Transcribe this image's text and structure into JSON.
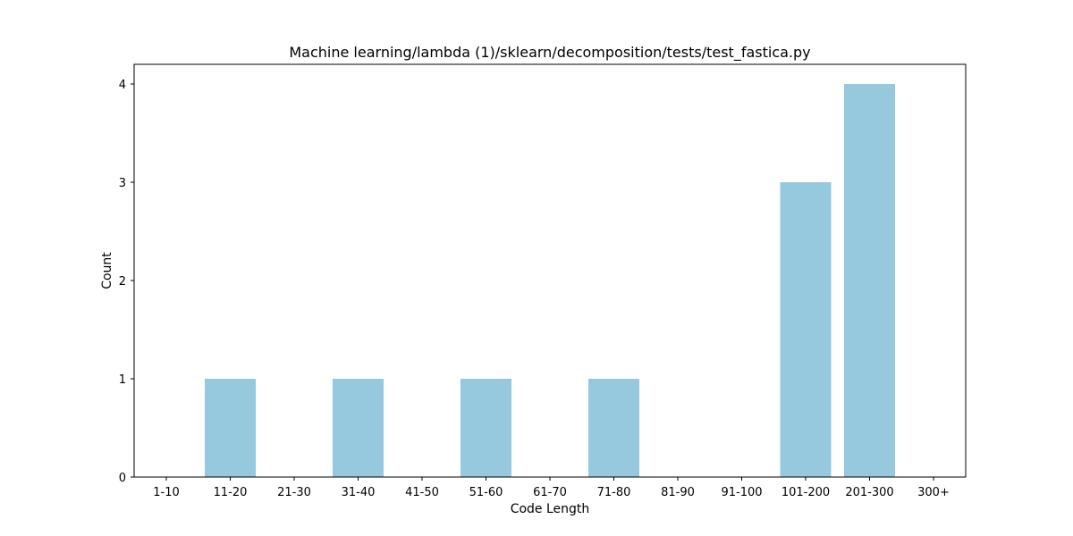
{
  "chart_data": {
    "type": "bar",
    "title": "Machine learning/lambda (1)/sklearn/decomposition/tests/test_fastica.py",
    "xlabel": "Code Length",
    "ylabel": "Count",
    "categories": [
      "1-10",
      "11-20",
      "21-30",
      "31-40",
      "41-50",
      "51-60",
      "61-70",
      "71-80",
      "81-90",
      "91-100",
      "101-200",
      "201-300",
      "300+"
    ],
    "values": [
      0,
      1,
      0,
      1,
      0,
      1,
      0,
      1,
      0,
      0,
      3,
      4,
      0
    ],
    "ylim": [
      0,
      4.2
    ],
    "yticks": [
      0,
      1,
      2,
      3,
      4
    ],
    "bar_color": "#96c9dd",
    "grid": false,
    "legend": "none"
  }
}
